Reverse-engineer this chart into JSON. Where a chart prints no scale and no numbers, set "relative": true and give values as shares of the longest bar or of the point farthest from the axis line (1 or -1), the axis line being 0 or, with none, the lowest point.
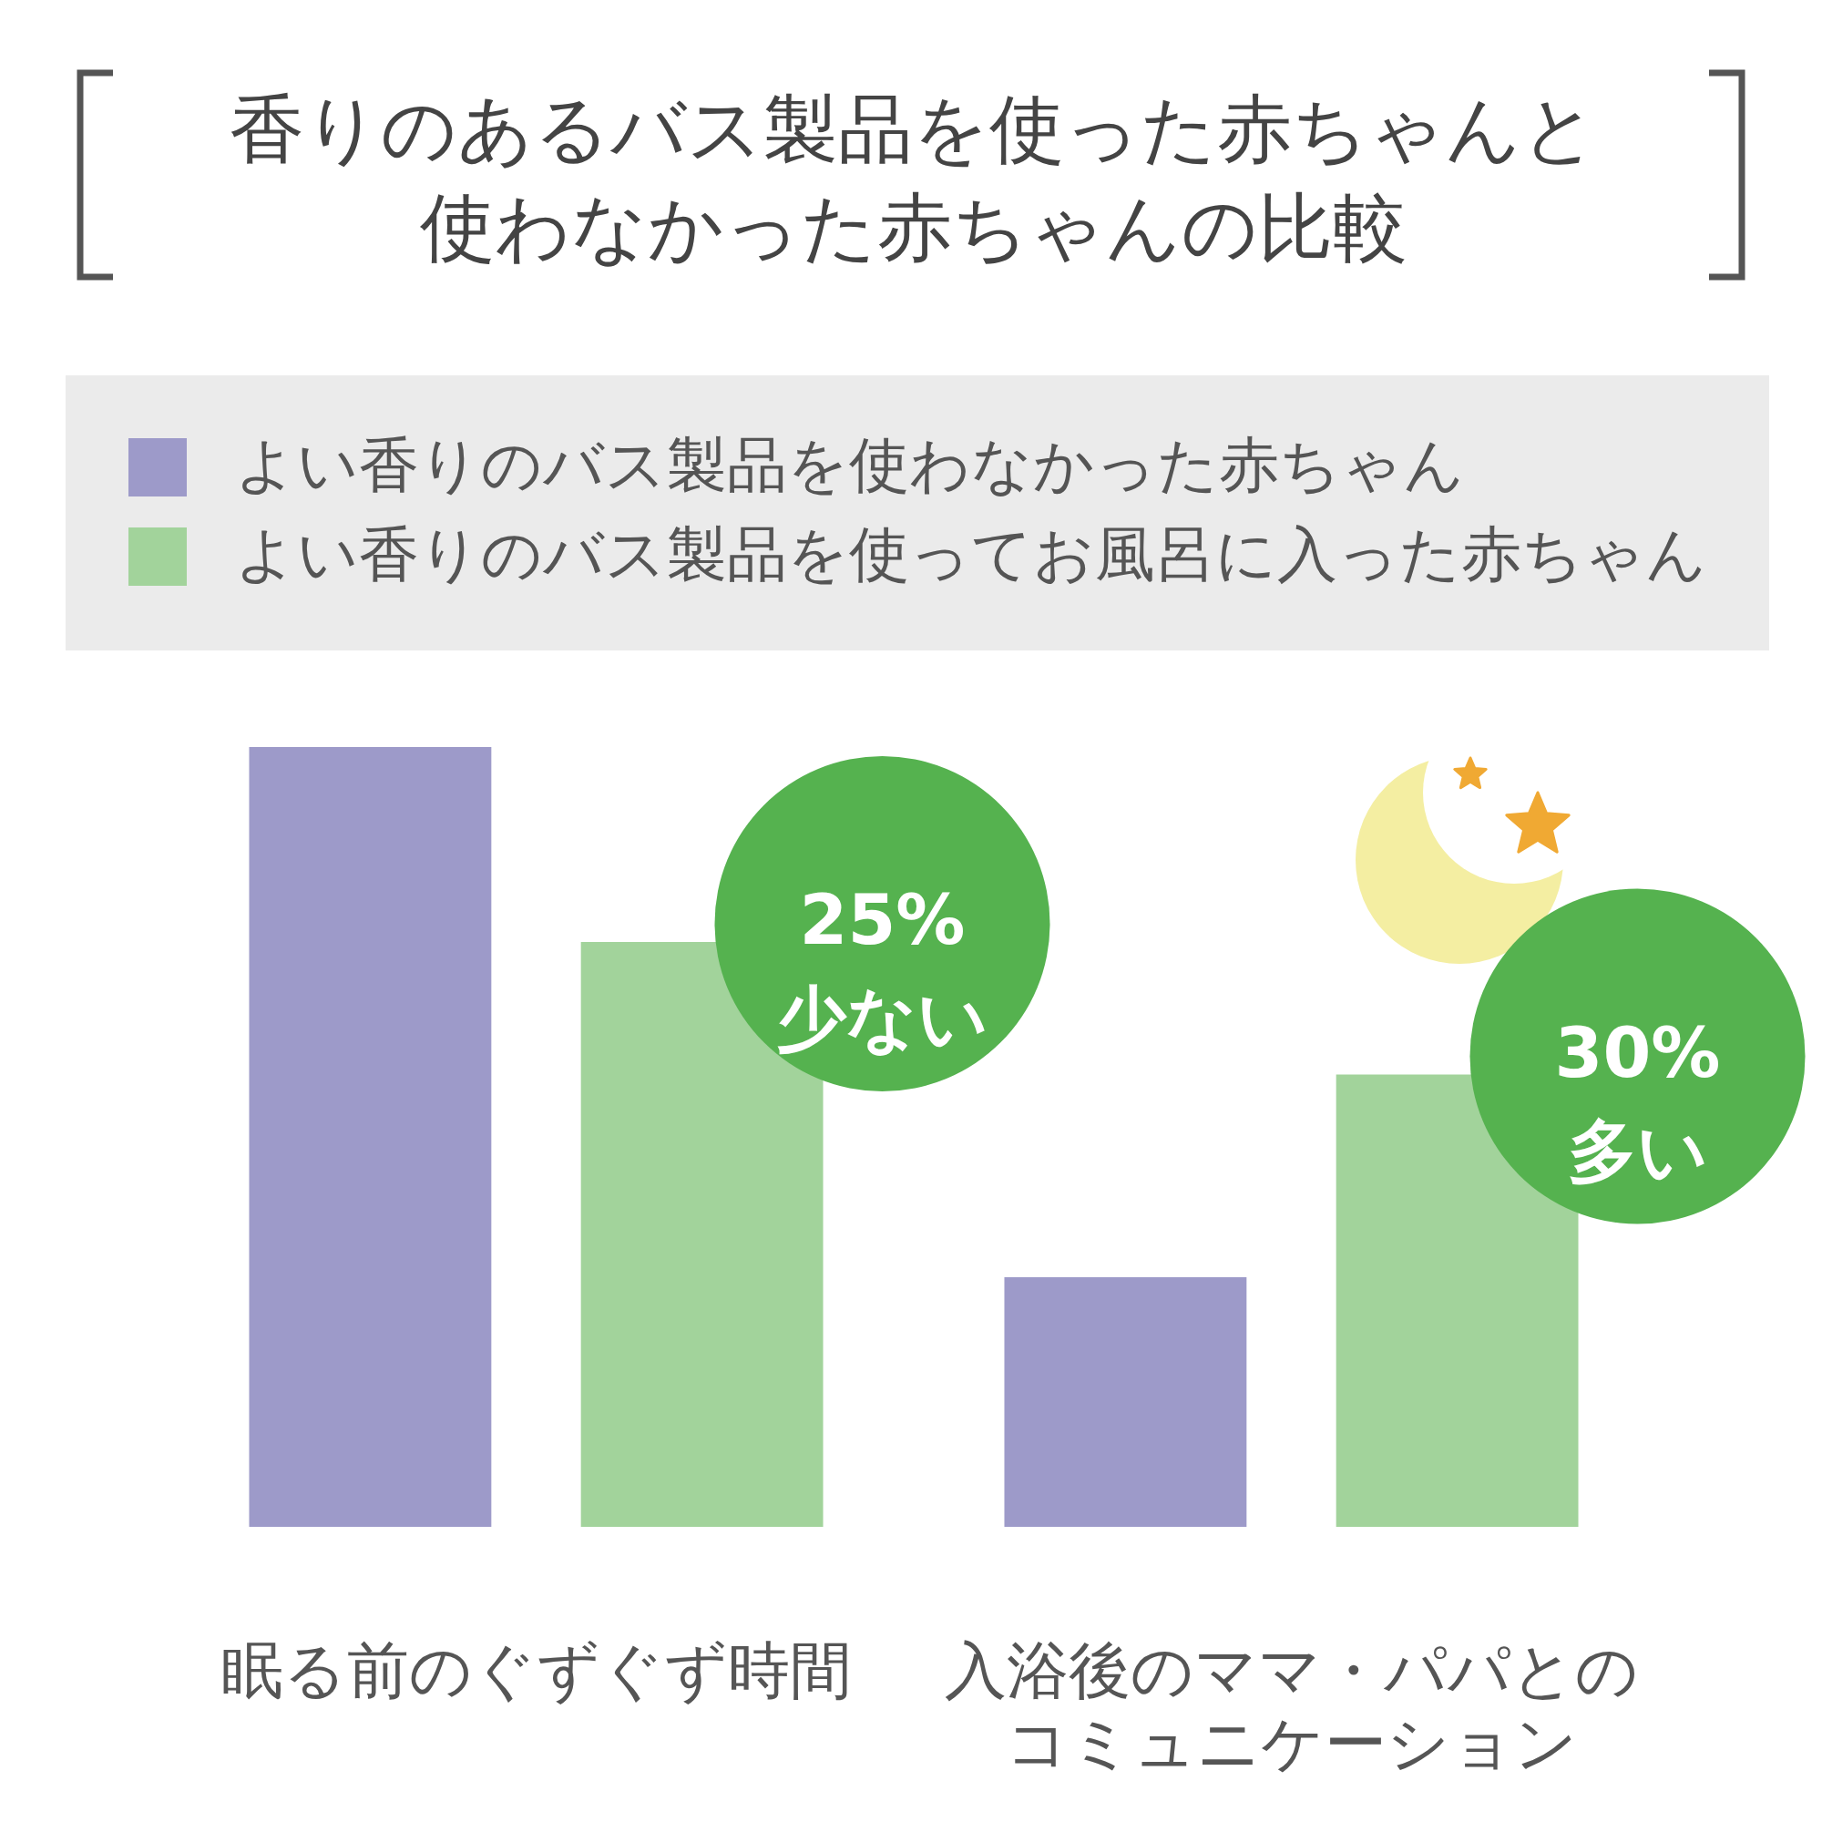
{
  "chart_data": {
    "type": "bar",
    "title": "香りのあるバス製品を使った赤ちゃんと使わなかった赤ちゃんの比較",
    "categories": [
      "眠る前のぐずぐず時間",
      "入浴後のママ・パパとのコミュニケーション"
    ],
    "series": [
      {
        "name": "よい香りのバス製品を使わなかった赤ちゃん",
        "color": "#9d9ac9",
        "values": [
          1,
          0.32
        ]
      },
      {
        "name": "よい香りのバス製品を使ってお風呂に入った赤ちゃん",
        "color": "#a2d39b",
        "values": [
          0.75,
          0.58
        ]
      }
    ],
    "relative": true,
    "legend": "top",
    "annotations": [
      "25%\n少ない",
      "30%\n多い"
    ]
  }
}
